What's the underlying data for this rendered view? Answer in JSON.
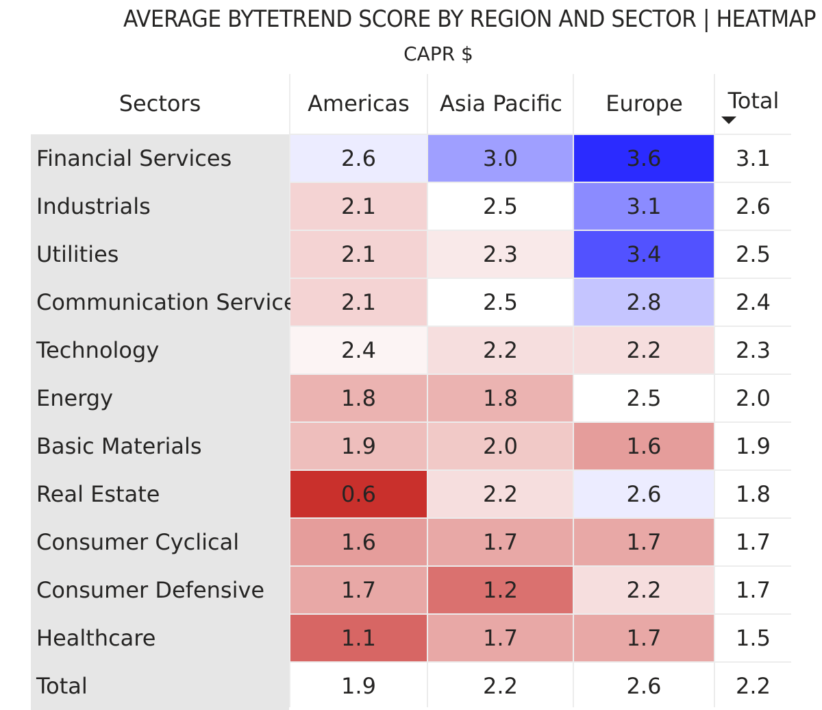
{
  "header": {
    "title": "AVERAGE BYTETREND SCORE BY REGION AND SECTOR | HEATMAP",
    "subtitle": "CAPR $"
  },
  "chart_data": {
    "type": "heatmap",
    "title": "AVERAGE BYTETREND SCORE BY REGION AND SECTOR | HEATMAP",
    "subtitle": "CAPR $",
    "row_header": "Sectors",
    "columns": [
      "Americas",
      "Asia Pacific",
      "Europe"
    ],
    "total_label": "Total",
    "sorted_by": "Total",
    "sort_direction": "descending",
    "color_scale": {
      "low": "#c9302c",
      "mid": "#ffffff",
      "high": "#2b2bff",
      "min": 0.6,
      "mid_value": 2.5,
      "max": 3.6
    },
    "rows": [
      {
        "sector": "Financial Services",
        "values": [
          "2.6",
          "3.0",
          "3.6"
        ],
        "total": "3.1"
      },
      {
        "sector": "Industrials",
        "values": [
          "2.1",
          "2.5",
          "3.1"
        ],
        "total": "2.6"
      },
      {
        "sector": "Utilities",
        "values": [
          "2.1",
          "2.3",
          "3.4"
        ],
        "total": "2.5"
      },
      {
        "sector": "Communication Services",
        "values": [
          "2.1",
          "2.5",
          "2.8"
        ],
        "total": "2.4"
      },
      {
        "sector": "Technology",
        "values": [
          "2.4",
          "2.2",
          "2.2"
        ],
        "total": "2.3"
      },
      {
        "sector": "Energy",
        "values": [
          "1.8",
          "1.8",
          "2.5"
        ],
        "total": "2.0"
      },
      {
        "sector": "Basic Materials",
        "values": [
          "1.9",
          "2.0",
          "1.6"
        ],
        "total": "1.9"
      },
      {
        "sector": "Real Estate",
        "values": [
          "0.6",
          "2.2",
          "2.6"
        ],
        "total": "1.8"
      },
      {
        "sector": "Consumer Cyclical",
        "values": [
          "1.6",
          "1.7",
          "1.7"
        ],
        "total": "1.7"
      },
      {
        "sector": "Consumer Defensive",
        "values": [
          "1.7",
          "1.2",
          "2.2"
        ],
        "total": "1.7"
      },
      {
        "sector": "Healthcare",
        "values": [
          "1.1",
          "1.7",
          "1.7"
        ],
        "total": "1.5"
      }
    ],
    "column_totals": {
      "label": "Total",
      "values": [
        "1.9",
        "2.2",
        "2.6"
      ],
      "grand_total": "2.2"
    }
  }
}
